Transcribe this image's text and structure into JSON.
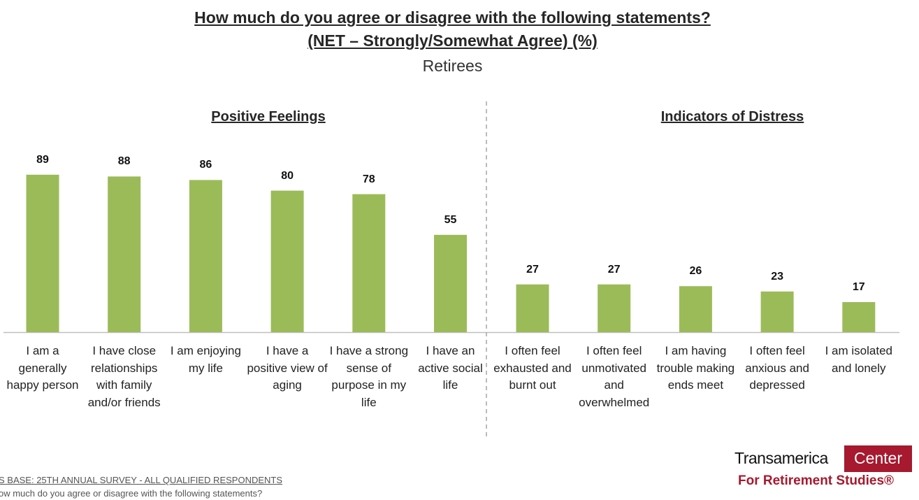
{
  "title": "How much do you agree or disagree with the following statements?",
  "subtitle": "(NET – Strongly/Somewhat Agree) (%)",
  "caption": "Retirees",
  "chart_data": [
    {
      "type": "bar",
      "title": "Positive Feelings",
      "categories": [
        "I am a generally happy person",
        "I have close relationships with family and/or friends",
        "I am enjoying my life",
        "I have a positive view of aging",
        "I have a strong sense of purpose in my life",
        "I have an active social life"
      ],
      "values": [
        89,
        88,
        86,
        80,
        78,
        55
      ],
      "color": "#9bbb59"
    },
    {
      "type": "bar",
      "title": "Indicators of Distress",
      "categories": [
        "I often feel exhausted and burnt out",
        "I often feel unmotivated and overwhelmed",
        "I am having trouble making ends meet",
        "I often feel anxious and depressed",
        "I am isolated and lonely"
      ],
      "values": [
        27,
        27,
        26,
        23,
        17
      ],
      "color": "#9bbb59"
    }
  ],
  "footer": {
    "base": "S BASE: 25TH ANNUAL SURVEY - ALL QUALIFIED RESPONDENTS",
    "question": "ow much do you agree or disagree with the following statements?"
  },
  "logo": {
    "brand": "Transamerica",
    "badge": "Center",
    "tagline": "For Retirement Studies®"
  }
}
